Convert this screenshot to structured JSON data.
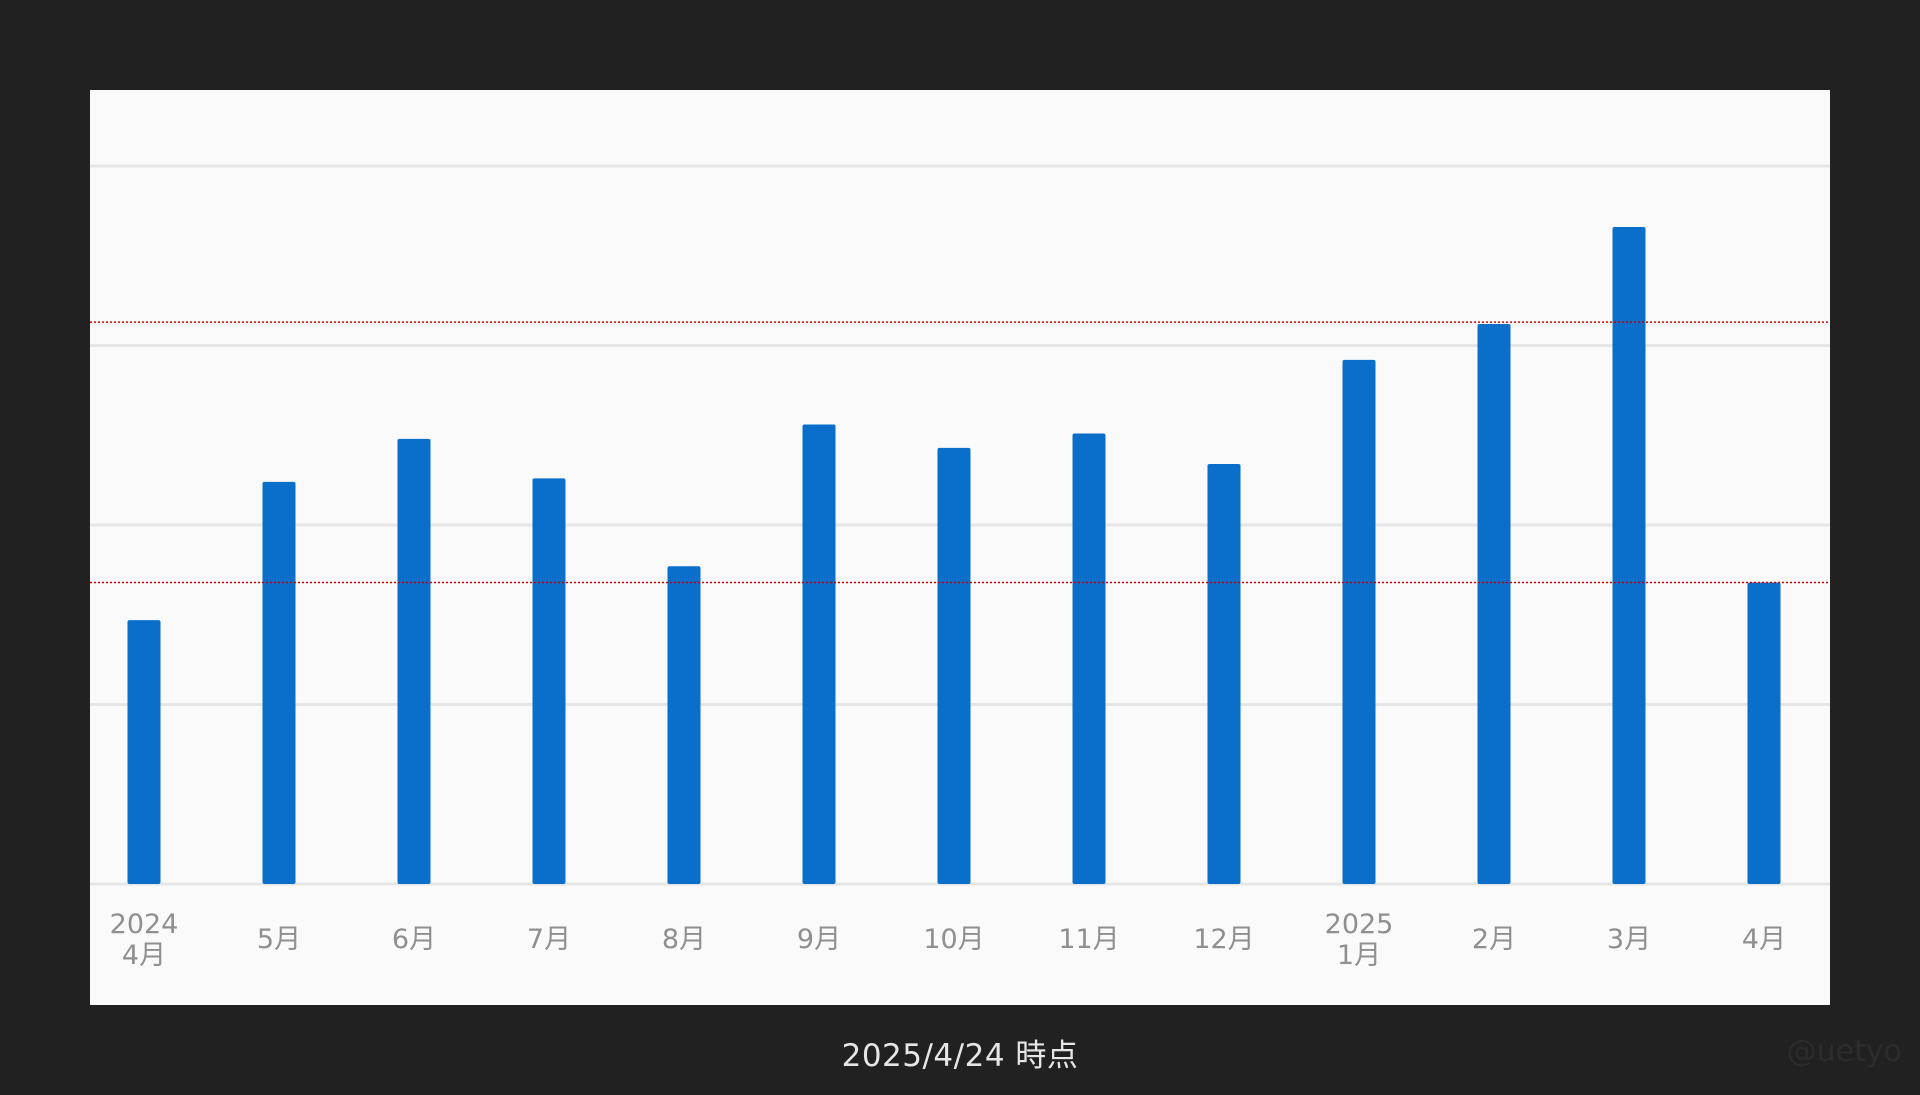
{
  "caption": "2025/4/24 時点",
  "watermark": "@uetyo",
  "colors": {
    "background": "#212121",
    "panel": "#fafafa",
    "bar": "#0a6fca",
    "grid": "#e6e6e6",
    "reference_line": "#cc0000",
    "tick_label": "#8f8f8f"
  },
  "chart_data": {
    "type": "bar",
    "categories": [
      [
        "2024",
        "4月"
      ],
      [
        "5月"
      ],
      [
        "6月"
      ],
      [
        "7月"
      ],
      [
        "8月"
      ],
      [
        "9月"
      ],
      [
        "10月"
      ],
      [
        "11月"
      ],
      [
        "12月"
      ],
      [
        "2025",
        "1月"
      ],
      [
        "2月"
      ],
      [
        "3月"
      ],
      [
        "4月"
      ]
    ],
    "values": [
      1.47,
      2.24,
      2.48,
      2.26,
      1.77,
      2.56,
      2.43,
      2.51,
      2.34,
      2.92,
      3.12,
      3.66,
      1.68
    ],
    "ylim": [
      0,
      4.0
    ],
    "gridlines": [
      0,
      1,
      2,
      3,
      4
    ],
    "reference_lines": [
      1.68,
      3.13
    ],
    "y_tick_labels_shown": false,
    "grid": true,
    "legend": "none"
  }
}
